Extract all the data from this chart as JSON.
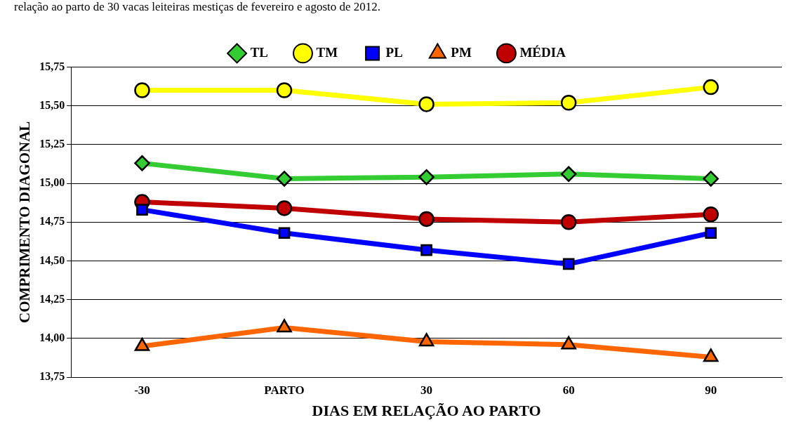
{
  "chart_data": {
    "type": "line",
    "title": "relação ao parto de 30 vacas leiteiras mestiças de fevereiro e agosto de 2012.",
    "xlabel": "DIAS EM RELAÇÃO AO PARTO",
    "ylabel": "COMPRIMENTO DIAGONAL",
    "categories": [
      "-30",
      "PARTO",
      "30",
      "60",
      "90"
    ],
    "series": [
      {
        "name": "TL",
        "color": "#33cc33",
        "marker": "diamond",
        "values": [
          15.13,
          15.03,
          15.04,
          15.06,
          15.03
        ]
      },
      {
        "name": "TM",
        "color": "#ffff00",
        "marker": "circle",
        "values": [
          15.6,
          15.6,
          15.51,
          15.52,
          15.62
        ]
      },
      {
        "name": "PL",
        "color": "#0000ff",
        "marker": "square",
        "values": [
          14.83,
          14.68,
          14.57,
          14.48,
          14.68
        ]
      },
      {
        "name": "PM",
        "color": "#ff6600",
        "marker": "triangle",
        "values": [
          13.95,
          14.07,
          13.98,
          13.96,
          13.88
        ]
      },
      {
        "name": "MÉDIA",
        "color": "#c00000",
        "marker": "circle",
        "values": [
          14.88,
          14.84,
          14.77,
          14.75,
          14.8
        ]
      }
    ],
    "ylim": [
      13.75,
      15.75
    ],
    "yticks": [
      {
        "value": 13.75,
        "label": "13,75"
      },
      {
        "value": 14,
        "label": "14,00"
      },
      {
        "value": 14.25,
        "label": "14,25"
      },
      {
        "value": 14.5,
        "label": "14,50"
      },
      {
        "value": 14.75,
        "label": "14,75"
      },
      {
        "value": 15,
        "label": "15,00"
      },
      {
        "value": 15.25,
        "label": "15,25"
      },
      {
        "value": 15.5,
        "label": "15,50"
      },
      {
        "value": 15.75,
        "label": "15,75"
      }
    ],
    "grid": "y",
    "legend": "top",
    "line_style": "solid"
  }
}
